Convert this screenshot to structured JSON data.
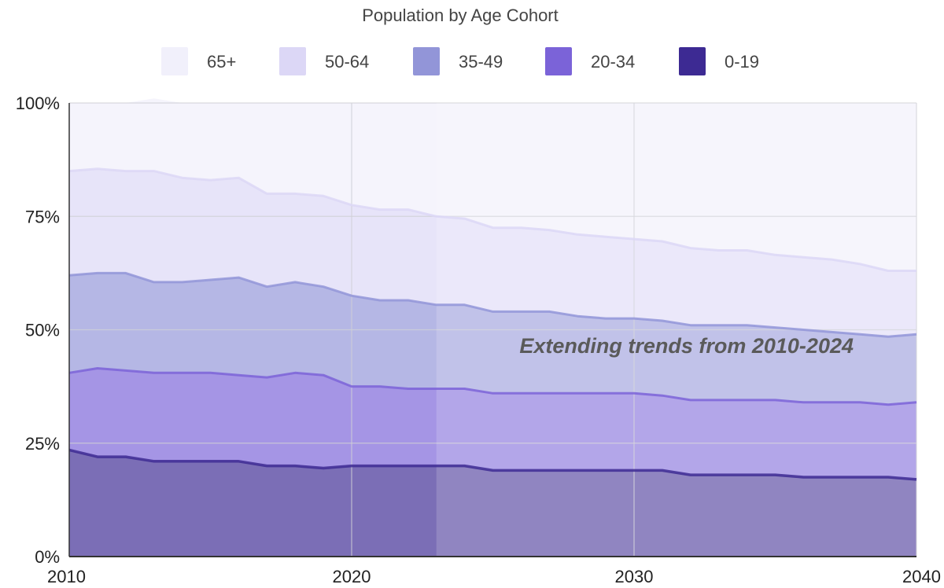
{
  "chart_data": {
    "type": "area",
    "stacked": true,
    "title": "Population by Age Cohort",
    "xlabel": "",
    "ylabel": "",
    "xlim": [
      2010,
      2040
    ],
    "ylim": [
      0,
      100
    ],
    "x_ticks": [
      2010,
      2020,
      2030,
      2040
    ],
    "x_tick_labels": [
      "2010",
      "2020",
      "2030",
      "2040"
    ],
    "y_ticks": [
      0,
      25,
      50,
      75,
      100
    ],
    "y_tick_labels": [
      "0%",
      "25%",
      "50%",
      "75%",
      "100%"
    ],
    "grid": true,
    "legend_position": "top",
    "legend_order": [
      "65+",
      "50-64",
      "35-49",
      "20-34",
      "0-19"
    ],
    "projection_start_x": 2023,
    "annotation": "Extending trends from 2010-2024",
    "x": [
      2010,
      2011,
      2012,
      2013,
      2014,
      2015,
      2016,
      2017,
      2018,
      2019,
      2020,
      2021,
      2022,
      2023,
      2024,
      2025,
      2026,
      2027,
      2028,
      2029,
      2030,
      2031,
      2032,
      2033,
      2034,
      2035,
      2036,
      2037,
      2038,
      2039,
      2040
    ],
    "series": [
      {
        "name": "0-19",
        "color": "#3d2a93",
        "values": [
          23.5,
          22,
          22,
          21,
          21,
          21,
          21,
          20,
          20,
          19.5,
          20,
          20,
          20,
          20,
          20,
          19,
          19,
          19,
          19,
          19,
          19,
          19,
          18,
          18,
          18,
          18,
          17.5,
          17.5,
          17.5,
          17.5,
          17
        ]
      },
      {
        "name": "20-34",
        "color": "#7b63d8",
        "values": [
          17,
          19.5,
          19,
          19.5,
          19.5,
          19.5,
          19,
          19.5,
          20.5,
          20.5,
          17.5,
          17.5,
          17,
          17,
          17,
          17,
          17,
          17,
          17,
          17,
          17,
          16.5,
          16.5,
          16.5,
          16.5,
          16.5,
          16.5,
          16.5,
          16.5,
          16,
          17
        ]
      },
      {
        "name": "35-49",
        "color": "#9295d8",
        "values": [
          21.5,
          21,
          21.5,
          20,
          20,
          20.5,
          21.5,
          20,
          20,
          19.5,
          20,
          19,
          19.5,
          18.5,
          18.5,
          18,
          18,
          18,
          17,
          16.5,
          16.5,
          16.5,
          16.5,
          16.5,
          16.5,
          16,
          16,
          15.5,
          15,
          15,
          15
        ]
      },
      {
        "name": "50-64",
        "color": "#dcd7f6",
        "values": [
          23,
          23,
          22.5,
          24.5,
          23,
          22,
          22,
          20.5,
          19.5,
          20,
          20,
          20,
          20,
          19.5,
          19,
          18.5,
          18.5,
          18,
          18,
          18,
          17.5,
          17.5,
          17,
          16.5,
          16.5,
          16,
          16,
          16,
          15.5,
          14.5,
          14
        ]
      },
      {
        "name": "65+",
        "color": "#f1f0fb",
        "values": [
          15,
          14.5,
          15,
          16,
          16.5,
          17,
          16.5,
          20,
          20,
          20.5,
          22.5,
          23.5,
          23.5,
          25,
          25.5,
          27.5,
          27.5,
          28,
          29,
          29.5,
          30,
          30.5,
          32,
          32.5,
          32.5,
          33.5,
          34,
          34.5,
          35.5,
          37,
          37
        ]
      }
    ]
  }
}
